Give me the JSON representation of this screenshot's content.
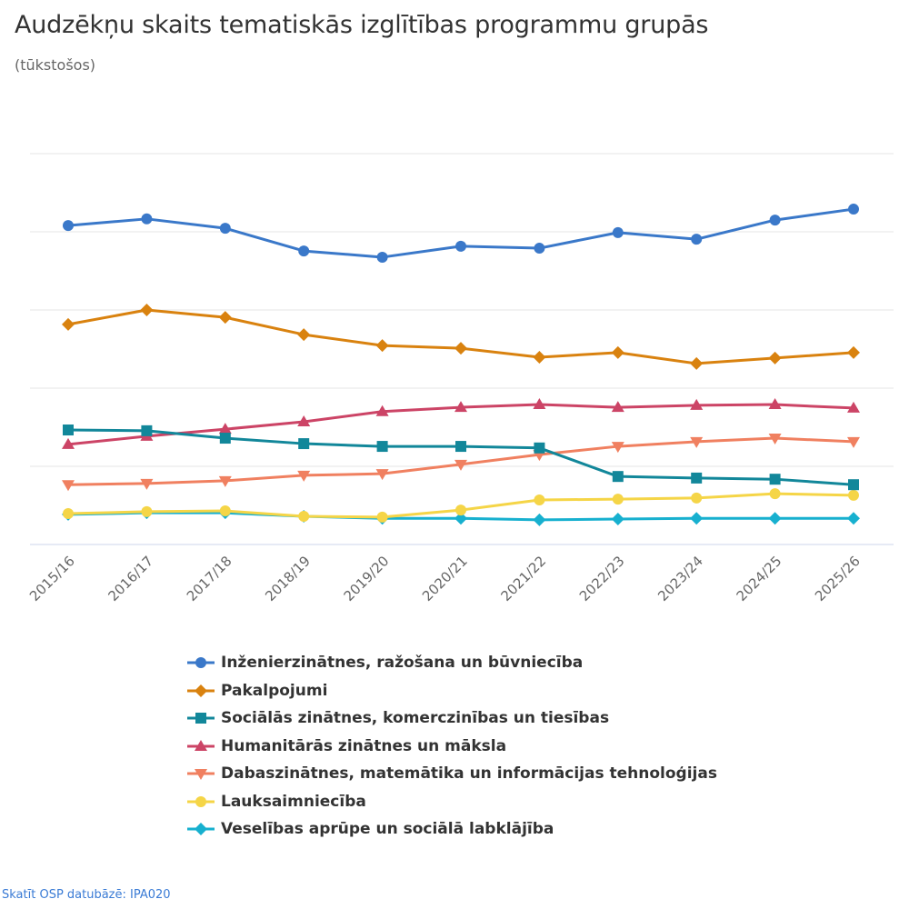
{
  "chart_data": {
    "type": "line",
    "title": "Audzēkņu skaits tematiskās izglītības programmu grupās",
    "subtitle": "(tūkstošos)",
    "xlabel": "",
    "ylabel": "",
    "ylim": [
      0,
      10
    ],
    "yticks": [
      0,
      2,
      4,
      6,
      8,
      10
    ],
    "ytick_labels_visible": false,
    "grid": true,
    "legend_position": "bottom",
    "categories": [
      "2015/16",
      "2016/17",
      "2017/18",
      "2018/19",
      "2019/20",
      "2020/21",
      "2021/22",
      "2022/23",
      "2023/24",
      "2024/25",
      "2025/26"
    ],
    "series": [
      {
        "name": "Inženierzinātnes, ražošana un būvniecība",
        "color": "#3a78c9",
        "marker": "circle",
        "values": [
          8.16,
          8.33,
          8.09,
          7.51,
          7.35,
          7.63,
          7.58,
          7.98,
          7.81,
          8.3,
          8.58
        ]
      },
      {
        "name": "Pakalpojumi",
        "color": "#d9820f",
        "marker": "diamond",
        "values": [
          5.63,
          6.0,
          5.81,
          5.37,
          5.09,
          5.02,
          4.79,
          4.91,
          4.63,
          4.77,
          4.91
        ]
      },
      {
        "name": "Sociālās zinātnes, komerczinības un tiesības",
        "color": "#12879a",
        "marker": "square",
        "values": [
          2.93,
          2.91,
          2.72,
          2.58,
          2.51,
          2.51,
          2.47,
          1.74,
          1.7,
          1.67,
          1.53
        ]
      },
      {
        "name": "Humanitārās zinātnes un māksla",
        "color": "#cc4466",
        "marker": "triangle",
        "values": [
          2.56,
          2.77,
          2.95,
          3.14,
          3.4,
          3.51,
          3.58,
          3.51,
          3.56,
          3.58,
          3.49
        ]
      },
      {
        "name": "Dabaszinātnes, matemātika un informācijas tehnoloģijas",
        "color": "#f08060",
        "marker": "triangle-down",
        "values": [
          1.53,
          1.56,
          1.63,
          1.77,
          1.81,
          2.05,
          2.3,
          2.51,
          2.63,
          2.72,
          2.63
        ]
      },
      {
        "name": "Lauksaimniecība",
        "color": "#f5d547",
        "marker": "circle",
        "values": [
          0.79,
          0.84,
          0.86,
          0.72,
          0.7,
          0.88,
          1.14,
          1.16,
          1.19,
          1.3,
          1.26
        ]
      },
      {
        "name": "Veselības aprūpe un sociālā labklājība",
        "color": "#17b0cf",
        "marker": "diamond",
        "values": [
          0.77,
          0.81,
          0.81,
          0.72,
          0.67,
          0.67,
          0.63,
          0.65,
          0.67,
          0.67,
          0.67
        ]
      }
    ]
  },
  "footer": {
    "link_text": "Skatīt OSP datubāzē: IPA020"
  }
}
